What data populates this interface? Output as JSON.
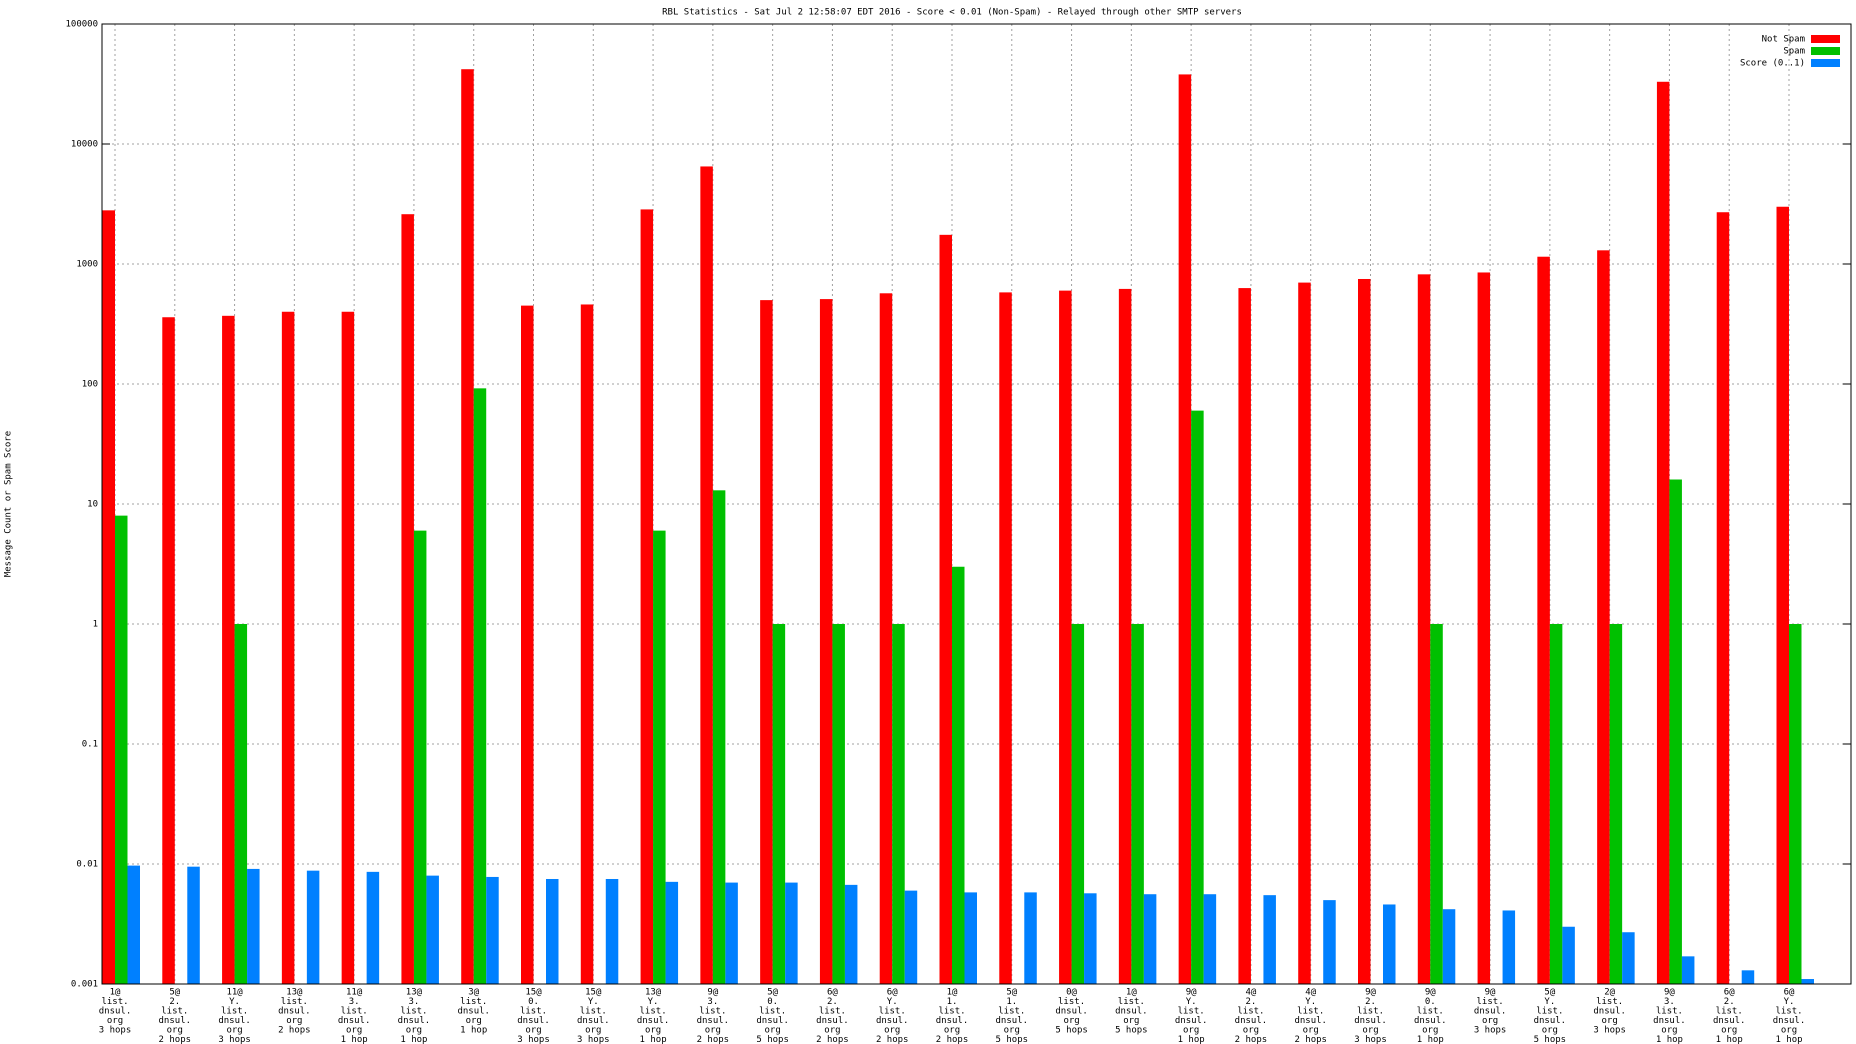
{
  "chart_data": {
    "type": "bar",
    "title": "RBL Statistics - Sat Jul  2 12:58:07 EDT 2016 - Score < 0.01 (Non-Spam) - Relayed through other SMTP servers",
    "y_label": "Message Count or Spam Score",
    "log_scale": true,
    "grid": true,
    "legend": "top-right",
    "categories": [
      [
        "1@",
        "list.",
        "dnsul.",
        "org",
        "3 hops"
      ],
      [
        "5@",
        "2.",
        "list.",
        "dnsul.",
        "org",
        "2 hops"
      ],
      [
        "11@",
        "Y.",
        "list.",
        "dnsul.",
        "org",
        "3 hops"
      ],
      [
        "13@",
        "list.",
        "dnsul.",
        "org",
        "2 hops"
      ],
      [
        "11@",
        "3.",
        "list.",
        "dnsul.",
        "org",
        "1 hop"
      ],
      [
        "13@",
        "3.",
        "list.",
        "dnsul.",
        "org",
        "1 hop"
      ],
      [
        "3@",
        "list.",
        "dnsul.",
        "org",
        "1 hop"
      ],
      [
        "15@",
        "0.",
        "list.",
        "dnsul.",
        "org",
        "3 hops"
      ],
      [
        "15@",
        "Y.",
        "list.",
        "dnsul.",
        "org",
        "3 hops"
      ],
      [
        "13@",
        "Y.",
        "list.",
        "dnsul.",
        "org",
        "1 hop"
      ],
      [
        "9@",
        "3.",
        "list.",
        "dnsul.",
        "org",
        "2 hops"
      ],
      [
        "5@",
        "0.",
        "list.",
        "dnsul.",
        "org",
        "5 hops"
      ],
      [
        "6@",
        "2.",
        "list.",
        "dnsul.",
        "org",
        "2 hops"
      ],
      [
        "6@",
        "Y.",
        "list.",
        "dnsul.",
        "org",
        "2 hops"
      ],
      [
        "1@",
        "1.",
        "list.",
        "dnsul.",
        "org",
        "2 hops"
      ],
      [
        "5@",
        "1.",
        "list.",
        "dnsul.",
        "org",
        "5 hops"
      ],
      [
        "0@",
        "list.",
        "dnsul.",
        "org",
        "5 hops"
      ],
      [
        "1@",
        "list.",
        "dnsul.",
        "org",
        "5 hops"
      ],
      [
        "9@",
        "Y.",
        "list.",
        "dnsul.",
        "org",
        "1 hop"
      ],
      [
        "4@",
        "2.",
        "list.",
        "dnsul.",
        "org",
        "2 hops"
      ],
      [
        "4@",
        "Y.",
        "list.",
        "dnsul.",
        "org",
        "2 hops"
      ],
      [
        "9@",
        "2.",
        "list.",
        "dnsul.",
        "org",
        "3 hops"
      ],
      [
        "9@",
        "0.",
        "list.",
        "dnsul.",
        "org",
        "1 hop"
      ],
      [
        "9@",
        "list.",
        "dnsul.",
        "org",
        "3 hops"
      ],
      [
        "5@",
        "Y.",
        "list.",
        "dnsul.",
        "org",
        "5 hops"
      ],
      [
        "2@",
        "list.",
        "dnsul.",
        "org",
        "3 hops"
      ],
      [
        "9@",
        "3.",
        "list.",
        "dnsul.",
        "org",
        "1 hop"
      ],
      [
        "6@",
        "2.",
        "list.",
        "dnsul.",
        "org",
        "1 hop"
      ],
      [
        "6@",
        "Y.",
        "list.",
        "dnsul.",
        "org",
        "1 hop"
      ]
    ],
    "series": [
      {
        "name": "Not Spam",
        "color": "#ff0000",
        "values": [
          2800,
          360,
          370,
          400,
          400,
          2600,
          42000,
          450,
          460,
          2850,
          6500,
          500,
          510,
          570,
          1750,
          580,
          600,
          620,
          38000,
          630,
          700,
          750,
          820,
          850,
          1150,
          1300,
          33000,
          2700,
          3000
        ]
      },
      {
        "name": "Spam",
        "color": "#00c000",
        "values": [
          8,
          null,
          1,
          null,
          null,
          6,
          92,
          null,
          null,
          6,
          13,
          1,
          1,
          1,
          3,
          null,
          1,
          1,
          60,
          null,
          null,
          null,
          1,
          null,
          1,
          1,
          16,
          null,
          1
        ]
      },
      {
        "name": "Score (0..1)",
        "color": "#0080ff",
        "values": [
          0.0097,
          0.0095,
          0.0091,
          0.0088,
          0.0086,
          0.008,
          0.0078,
          0.0075,
          0.0075,
          0.0071,
          0.007,
          0.007,
          0.0067,
          0.006,
          0.0058,
          0.0058,
          0.0057,
          0.0056,
          0.0056,
          0.0055,
          0.005,
          0.0046,
          0.0042,
          0.0041,
          0.003,
          0.0027,
          0.0017,
          0.0013,
          0.0011
        ]
      }
    ],
    "ylim": [
      0.001,
      100000
    ],
    "yticks": [
      0.001,
      0.01,
      0.1,
      1,
      10,
      100,
      1000,
      10000,
      100000
    ]
  }
}
